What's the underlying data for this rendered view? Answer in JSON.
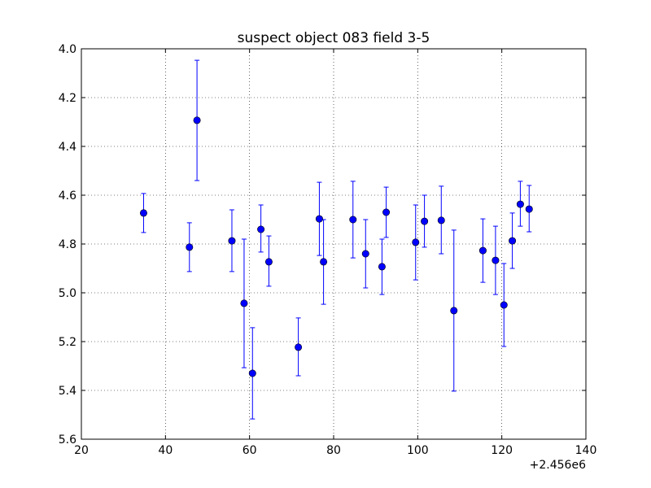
{
  "chart_data": {
    "type": "scatter",
    "title": "suspect object 083 field 3-5",
    "xlabel": "",
    "ylabel": "",
    "x_offset_label": "+2.456e6",
    "xlim": [
      20,
      140
    ],
    "ylim": [
      4.0,
      5.6
    ],
    "y_inverted": true,
    "grid": true,
    "x_ticks": [
      20,
      40,
      60,
      80,
      100,
      120,
      140
    ],
    "y_ticks": [
      4.0,
      4.2,
      4.4,
      4.6,
      4.8,
      5.0,
      5.2,
      5.4,
      5.6
    ],
    "x_tick_labels": [
      "20",
      "40",
      "60",
      "80",
      "100",
      "120",
      "140"
    ],
    "y_tick_labels": [
      "4.0",
      "4.2",
      "4.4",
      "4.6",
      "4.8",
      "5.0",
      "5.2",
      "5.4",
      "5.6"
    ],
    "marker_color": "#0000ff",
    "points": [
      {
        "x": 34.8,
        "y": 4.673,
        "lo": 4.593,
        "hi": 4.753
      },
      {
        "x": 45.7,
        "y": 4.813,
        "lo": 4.713,
        "hi": 4.913
      },
      {
        "x": 47.5,
        "y": 4.293,
        "lo": 4.047,
        "hi": 4.54
      },
      {
        "x": 55.8,
        "y": 4.787,
        "lo": 4.66,
        "hi": 4.913
      },
      {
        "x": 58.7,
        "y": 5.043,
        "lo": 4.78,
        "hi": 5.307
      },
      {
        "x": 60.7,
        "y": 5.33,
        "lo": 5.143,
        "hi": 5.517
      },
      {
        "x": 62.7,
        "y": 4.74,
        "lo": 4.64,
        "hi": 4.833
      },
      {
        "x": 64.6,
        "y": 4.873,
        "lo": 4.767,
        "hi": 4.973
      },
      {
        "x": 71.6,
        "y": 5.223,
        "lo": 5.103,
        "hi": 5.34
      },
      {
        "x": 76.6,
        "y": 4.697,
        "lo": 4.547,
        "hi": 4.847
      },
      {
        "x": 77.6,
        "y": 4.873,
        "lo": 4.7,
        "hi": 5.047
      },
      {
        "x": 84.6,
        "y": 4.7,
        "lo": 4.543,
        "hi": 4.857
      },
      {
        "x": 87.6,
        "y": 4.84,
        "lo": 4.7,
        "hi": 4.98
      },
      {
        "x": 91.5,
        "y": 4.893,
        "lo": 4.78,
        "hi": 5.007
      },
      {
        "x": 92.5,
        "y": 4.67,
        "lo": 4.567,
        "hi": 4.773
      },
      {
        "x": 99.5,
        "y": 4.793,
        "lo": 4.64,
        "hi": 4.947
      },
      {
        "x": 101.6,
        "y": 4.707,
        "lo": 4.6,
        "hi": 4.813
      },
      {
        "x": 105.6,
        "y": 4.703,
        "lo": 4.563,
        "hi": 4.84
      },
      {
        "x": 108.6,
        "y": 5.073,
        "lo": 4.743,
        "hi": 5.403
      },
      {
        "x": 115.5,
        "y": 4.827,
        "lo": 4.697,
        "hi": 4.957
      },
      {
        "x": 118.5,
        "y": 4.867,
        "lo": 4.727,
        "hi": 5.007
      },
      {
        "x": 120.5,
        "y": 5.05,
        "lo": 4.88,
        "hi": 5.22
      },
      {
        "x": 122.5,
        "y": 4.787,
        "lo": 4.673,
        "hi": 4.9
      },
      {
        "x": 124.4,
        "y": 4.637,
        "lo": 4.543,
        "hi": 4.727
      },
      {
        "x": 126.5,
        "y": 4.657,
        "lo": 4.56,
        "hi": 4.75
      }
    ]
  }
}
